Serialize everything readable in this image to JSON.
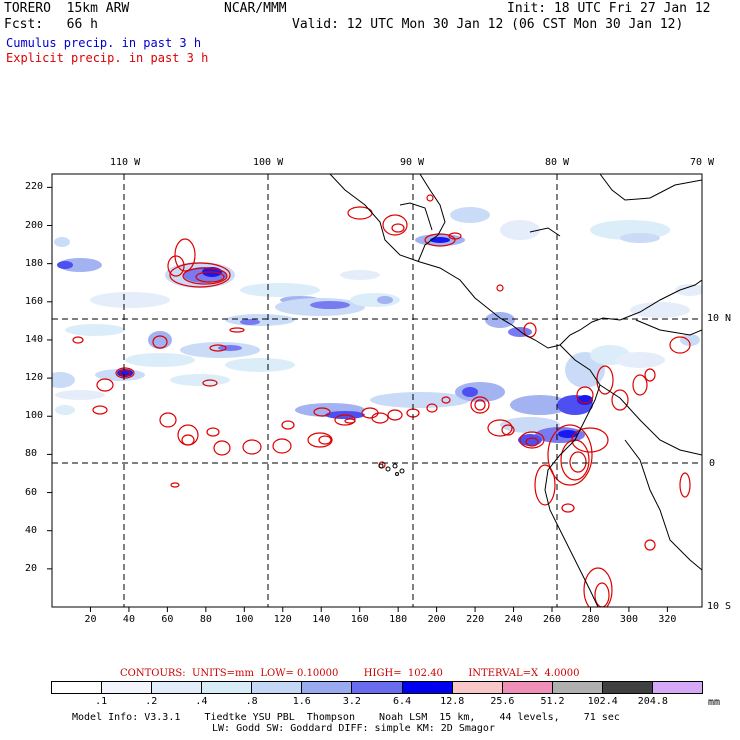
{
  "header": {
    "model": "TORERO  15km ARW",
    "org": "NCAR/MMM",
    "init": "Init: 18 UTC Fri 27 Jan 12",
    "fcst": "Fcst:   66 h",
    "valid": "Valid: 12 UTC Mon 30 Jan 12 (06 CST Mon 30 Jan 12)",
    "field1": "Cumulus precip. in past 3 h",
    "field2": "Explicit precip. in past 3 h"
  },
  "colors": {
    "cumulus": "#0000cc",
    "explicit": "#dd0000",
    "land": "#000000"
  },
  "map": {
    "lon_labels": [
      "110 W",
      "100 W",
      "90 W",
      "80 W",
      "70 W"
    ],
    "lat_labels": [
      "10 N",
      "0",
      "10 S"
    ],
    "y_ticks": [
      "220",
      "200",
      "180",
      "160",
      "140",
      "120",
      "100",
      "80",
      "60",
      "40",
      "20"
    ],
    "x_ticks": [
      "20",
      "40",
      "60",
      "80",
      "100",
      "120",
      "140",
      "160",
      "180",
      "200",
      "220",
      "240",
      "260",
      "280",
      "300",
      "320"
    ]
  },
  "contours": {
    "text": "CONTOURS:  UNITS=mm  LOW= 0.10000        HIGH=  102.40        INTERVAL=X  4.0000"
  },
  "legend": {
    "colors": [
      "#ffffff",
      "#f2f6fc",
      "#e3ecfa",
      "#d8ecf8",
      "#c4d8f6",
      "#9aaaf0",
      "#6a6cf0",
      "#0000f0",
      "#f8c8c8",
      "#f090b8",
      "#b0b0b0",
      "#404040",
      "#d8a8f8"
    ],
    "labels": [
      ".1",
      ".2",
      ".4",
      ".8",
      "1.6",
      "3.2",
      "6.4",
      "12.8",
      "25.6",
      "51.2",
      "102.4",
      "204.8"
    ],
    "unit": "mm"
  },
  "model_info": {
    "line1": "Model Info: V3.3.1    Tiedtke YSU PBL  Thompson    Noah LSM  15 km,    44 levels,    71 sec",
    "line2": "LW: Godd SW: Goddard DIFF: simple KM: 2D Smagor"
  }
}
